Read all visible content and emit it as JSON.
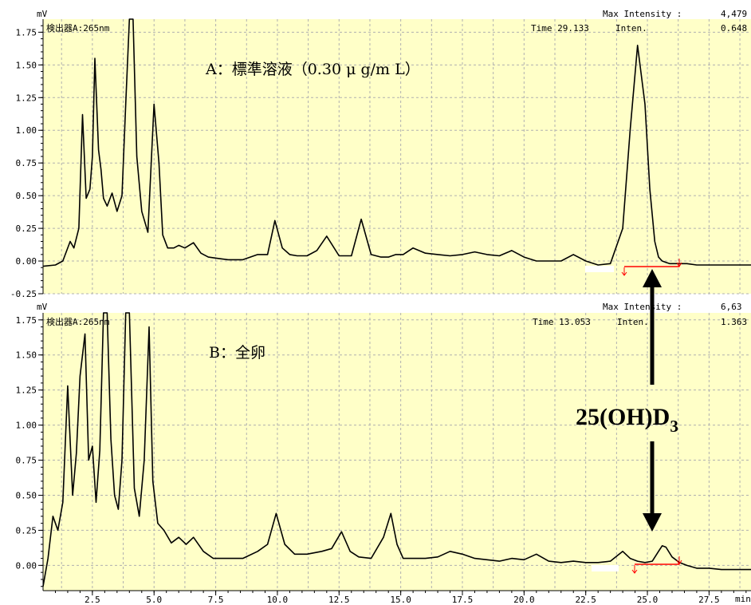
{
  "chart_data": [
    {
      "type": "line",
      "title": "A：標準溶液（0.30 μ g/m L）",
      "ylabel": "mV",
      "detector": "検出器A:265nm",
      "max_intensity_label": "Max Intensity :",
      "max_intensity_value": "4,479",
      "time_label": "Time 29.133",
      "inten_label": "Inten.",
      "inten_value": "0.648",
      "ylim": [
        -0.25,
        1.85
      ],
      "yticks": [
        "-0.25",
        "0.00",
        "0.25",
        "0.50",
        "0.75",
        "1.00",
        "1.25",
        "1.50",
        "1.75"
      ],
      "xlim": [
        0.5,
        29.2
      ],
      "series": [
        {
          "x": [
            0.5,
            1.0,
            1.3,
            1.6,
            1.75,
            1.95,
            2.1,
            2.25,
            2.4,
            2.5,
            2.6,
            2.75,
            2.85,
            2.95,
            3.1,
            3.3,
            3.5,
            3.7,
            3.85,
            4.0,
            4.15,
            4.3,
            4.5,
            4.75,
            5.0,
            5.2,
            5.35,
            5.55,
            5.8,
            6.0,
            6.25,
            6.6,
            6.9,
            7.2,
            7.6,
            8.0,
            8.6,
            9.2,
            9.6,
            9.9,
            10.2,
            10.5,
            10.8,
            11.2,
            11.6,
            12.0,
            12.5,
            13.0,
            13.4,
            13.8,
            14.2,
            14.5,
            14.8,
            15.1,
            15.5,
            16.0,
            16.5,
            17.0,
            17.5,
            18.0,
            18.5,
            19.0,
            19.5,
            20.0,
            20.5,
            21.0,
            21.5,
            22.0,
            22.5,
            23.0,
            23.5,
            24.0,
            24.3,
            24.6,
            24.9,
            25.1,
            25.3,
            25.45,
            25.6,
            25.75,
            25.9,
            26.1,
            26.3,
            26.6,
            27.0,
            27.5,
            28.0,
            28.5,
            29.2
          ],
          "y": [
            -0.04,
            -0.03,
            0.0,
            0.15,
            0.1,
            0.25,
            1.12,
            0.48,
            0.55,
            0.8,
            1.55,
            0.85,
            0.7,
            0.48,
            0.42,
            0.52,
            0.38,
            0.5,
            1.2,
            1.9,
            1.9,
            0.8,
            0.38,
            0.22,
            1.2,
            0.75,
            0.2,
            0.1,
            0.1,
            0.12,
            0.1,
            0.14,
            0.06,
            0.03,
            0.02,
            0.01,
            0.01,
            0.05,
            0.05,
            0.31,
            0.1,
            0.05,
            0.04,
            0.04,
            0.08,
            0.19,
            0.04,
            0.04,
            0.32,
            0.05,
            0.03,
            0.03,
            0.05,
            0.05,
            0.1,
            0.06,
            0.05,
            0.04,
            0.05,
            0.07,
            0.05,
            0.04,
            0.08,
            0.03,
            0.0,
            0.0,
            0.0,
            0.05,
            0.0,
            -0.03,
            -0.02,
            0.25,
            1.0,
            1.65,
            1.2,
            0.55,
            0.15,
            0.03,
            0.0,
            -0.01,
            -0.02,
            -0.02,
            -0.02,
            -0.02,
            -0.03,
            -0.03,
            -0.03,
            -0.03,
            -0.03
          ]
        }
      ]
    },
    {
      "type": "line",
      "title": "B：全卵",
      "ylabel": "mV",
      "detector": "検出器A:265nm",
      "max_intensity_label": "Max Intensity :",
      "max_intensity_value": "6,63",
      "time_label": "Time 13.053",
      "inten_label": "Inten.",
      "inten_value": "1.363",
      "ylim": [
        -0.18,
        1.8
      ],
      "yticks": [
        "0.00",
        "0.25",
        "0.50",
        "0.75",
        "1.00",
        "1.25",
        "1.50",
        "1.75"
      ],
      "xlim": [
        0.5,
        29.2
      ],
      "xticks": [
        "2.5",
        "5.0",
        "7.5",
        "10.0",
        "12.5",
        "15.0",
        "17.5",
        "20.0",
        "22.5",
        "25.0",
        "27.5"
      ],
      "xtick_values": [
        2.5,
        5.0,
        7.5,
        10.0,
        12.5,
        15.0,
        17.5,
        20.0,
        22.5,
        25.0,
        27.5
      ],
      "xlabel": "min",
      "series": [
        {
          "x": [
            0.5,
            0.7,
            0.9,
            1.1,
            1.3,
            1.5,
            1.7,
            1.85,
            2.0,
            2.2,
            2.35,
            2.5,
            2.65,
            2.8,
            2.95,
            3.1,
            3.25,
            3.4,
            3.55,
            3.7,
            3.85,
            4.0,
            4.2,
            4.4,
            4.6,
            4.8,
            4.95,
            5.15,
            5.4,
            5.7,
            6.0,
            6.3,
            6.6,
            7.0,
            7.4,
            8.0,
            8.6,
            9.2,
            9.6,
            9.95,
            10.3,
            10.7,
            11.2,
            11.8,
            12.2,
            12.6,
            12.95,
            13.3,
            13.8,
            14.3,
            14.6,
            14.85,
            15.1,
            15.5,
            16.0,
            16.5,
            17.0,
            17.5,
            18.0,
            18.5,
            19.0,
            19.5,
            20.0,
            20.5,
            21.0,
            21.5,
            22.0,
            22.5,
            23.0,
            23.5,
            24.0,
            24.3,
            24.6,
            24.9,
            25.2,
            25.45,
            25.6,
            25.75,
            26.0,
            26.3,
            26.6,
            27.0,
            27.5,
            28.0,
            28.5,
            29.2
          ],
          "y": [
            -0.15,
            0.05,
            0.35,
            0.25,
            0.45,
            1.28,
            0.5,
            0.8,
            1.35,
            1.65,
            0.75,
            0.85,
            0.45,
            0.82,
            1.9,
            1.9,
            0.9,
            0.5,
            0.4,
            0.75,
            1.9,
            1.9,
            0.55,
            0.35,
            0.75,
            1.7,
            0.6,
            0.3,
            0.25,
            0.16,
            0.2,
            0.15,
            0.2,
            0.1,
            0.05,
            0.05,
            0.05,
            0.1,
            0.15,
            0.37,
            0.15,
            0.08,
            0.08,
            0.1,
            0.12,
            0.24,
            0.1,
            0.06,
            0.05,
            0.2,
            0.37,
            0.15,
            0.05,
            0.05,
            0.05,
            0.06,
            0.1,
            0.08,
            0.05,
            0.04,
            0.03,
            0.05,
            0.04,
            0.08,
            0.03,
            0.02,
            0.03,
            0.02,
            0.02,
            0.03,
            0.1,
            0.05,
            0.03,
            0.02,
            0.03,
            0.1,
            0.14,
            0.13,
            0.06,
            0.02,
            0.0,
            -0.02,
            -0.02,
            -0.03,
            -0.03,
            -0.03
          ]
        }
      ]
    }
  ],
  "annotation": {
    "label_main": "25(OH)D",
    "label_sub": "3"
  },
  "colors": {
    "plot_bg": "#FFFFC8",
    "grid": "#B0B0B0",
    "trace": "#000000",
    "baseline": "#FF0000",
    "arrow": "#000000"
  }
}
